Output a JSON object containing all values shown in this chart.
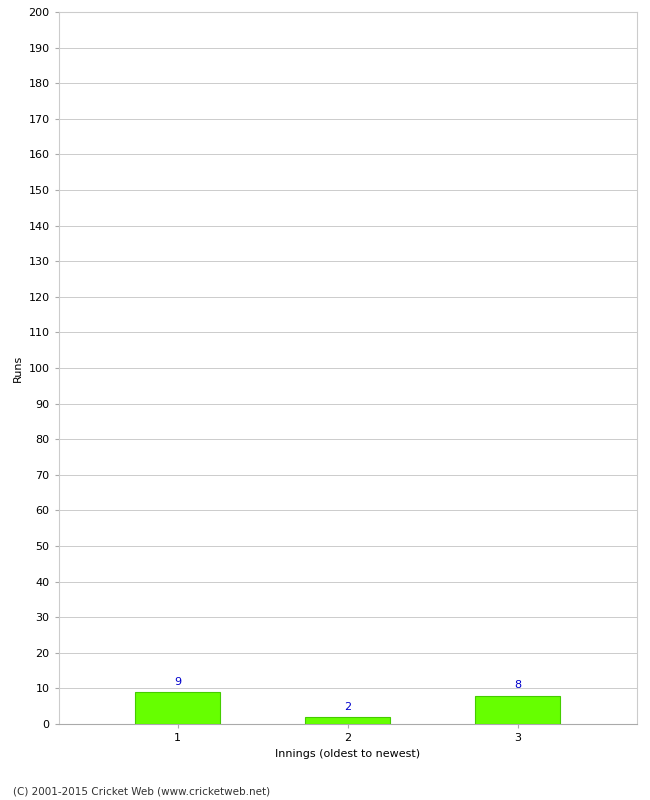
{
  "categories": [
    "1",
    "2",
    "3"
  ],
  "values": [
    9,
    2,
    8
  ],
  "bar_color": "#66ff00",
  "bar_edge_color": "#44cc00",
  "value_label_color": "#0000cc",
  "xlabel": "Innings (oldest to newest)",
  "ylabel": "Runs",
  "ylim": [
    0,
    200
  ],
  "yticks": [
    0,
    10,
    20,
    30,
    40,
    50,
    60,
    70,
    80,
    90,
    100,
    110,
    120,
    130,
    140,
    150,
    160,
    170,
    180,
    190,
    200
  ],
  "background_color": "#ffffff",
  "grid_color": "#cccccc",
  "footer_text": "(C) 2001-2015 Cricket Web (www.cricketweb.net)",
  "bar_width": 0.5,
  "value_fontsize": 8,
  "label_fontsize": 8,
  "ylabel_fontsize": 8,
  "footer_fontsize": 7.5
}
